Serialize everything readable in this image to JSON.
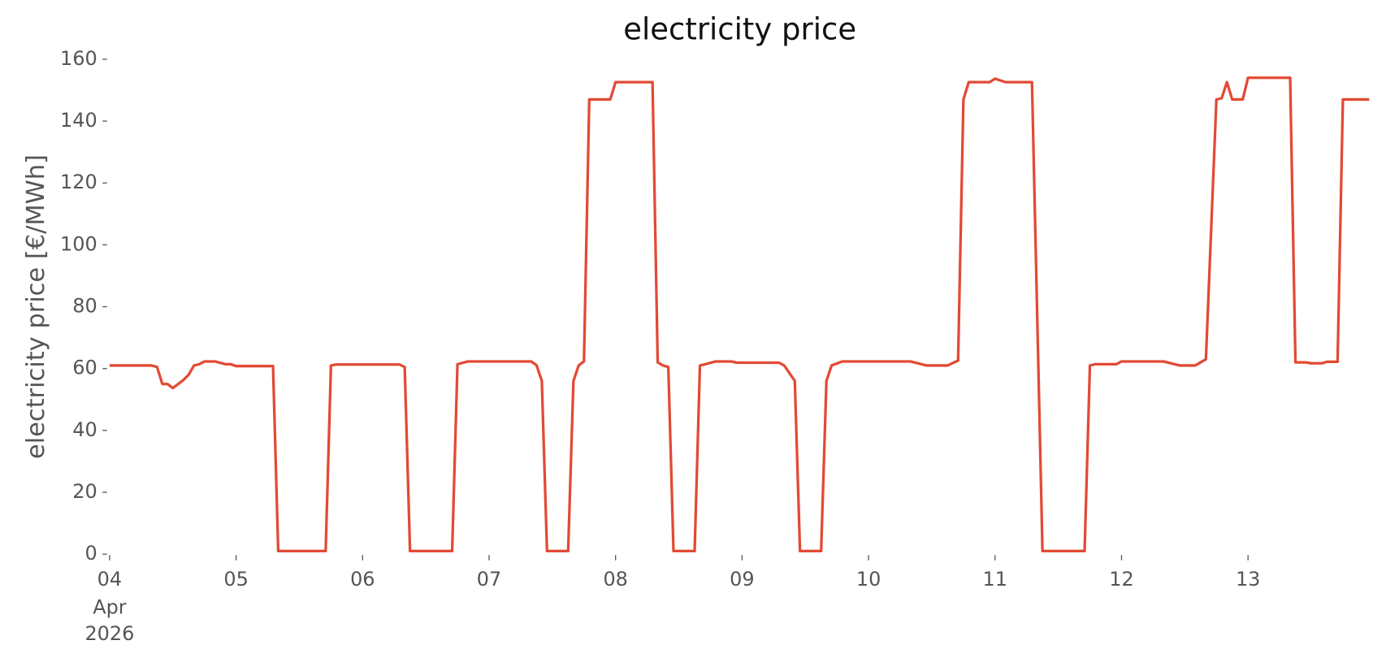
{
  "chart_data": {
    "type": "line",
    "title": "electricity price",
    "y_label": "electricity price [€/MWh]",
    "x_month_label": "Apr",
    "x_year_label": "2026",
    "x": [
      4,
      4.333,
      4.375,
      4.417,
      4.458,
      4.5,
      4.542,
      4.583,
      4.625,
      4.667,
      4.708,
      4.75,
      4.833,
      4.917,
      4.958,
      5,
      5.292,
      5.333,
      5.708,
      5.75,
      5.792,
      6.292,
      6.333,
      6.375,
      6.708,
      6.75,
      6.833,
      7.333,
      7.375,
      7.417,
      7.458,
      7.625,
      7.667,
      7.708,
      7.75,
      7.792,
      7.958,
      8,
      8.292,
      8.333,
      8.375,
      8.417,
      8.458,
      8.625,
      8.667,
      8.708,
      8.792,
      8.917,
      8.958,
      9.292,
      9.333,
      9.417,
      9.458,
      9.625,
      9.667,
      9.708,
      9.792,
      10,
      10.333,
      10.458,
      10.625,
      10.708,
      10.75,
      10.792,
      10.958,
      11,
      11.083,
      11.292,
      11.375,
      11.708,
      11.75,
      11.792,
      11.958,
      12,
      12.333,
      12.458,
      12.583,
      12.667,
      12.75,
      12.792,
      12.833,
      12.875,
      12.958,
      13,
      13.333,
      13.375,
      13.458,
      13.5,
      13.583,
      13.625,
      13.708,
      13.75,
      13.958
    ],
    "series": [
      {
        "name": "electricity price",
        "color": "#e24a33",
        "values": [
          61,
          61,
          60.5,
          55,
          55,
          53.7,
          55,
          56.3,
          58,
          61,
          61.4,
          62.3,
          62.3,
          61.4,
          61.4,
          60.8,
          60.8,
          1,
          1,
          61,
          61.3,
          61.3,
          60.5,
          1,
          1,
          61.4,
          62.3,
          62.3,
          61.1,
          56,
          1,
          1,
          56,
          61,
          62.3,
          147,
          147,
          152.6,
          152.6,
          62,
          61,
          60.5,
          1,
          1,
          61,
          61.4,
          62.3,
          62.3,
          61.9,
          61.9,
          61,
          56,
          1,
          1,
          56,
          61,
          62.3,
          62.3,
          62.3,
          61,
          61,
          62.6,
          147,
          152.6,
          152.6,
          153.7,
          152.6,
          152.6,
          1,
          1,
          61,
          61.4,
          61.4,
          62.3,
          62.3,
          61,
          61,
          63,
          147,
          147.4,
          152.6,
          147,
          147,
          154,
          154,
          62,
          62,
          61.7,
          61.7,
          62.2,
          62.2,
          147,
          147
        ]
      }
    ],
    "xlim": [
      4,
      13.958
    ],
    "xticks": [
      {
        "value": 4,
        "label": "04"
      },
      {
        "value": 5,
        "label": "05"
      },
      {
        "value": 6,
        "label": "06"
      },
      {
        "value": 7,
        "label": "07"
      },
      {
        "value": 8,
        "label": "08"
      },
      {
        "value": 9,
        "label": "09"
      },
      10,
      11,
      12,
      13
    ],
    "ylim": [
      0,
      160
    ],
    "yticks": [
      0,
      20,
      40,
      60,
      80,
      100,
      120,
      140,
      160
    ],
    "grid": false
  }
}
